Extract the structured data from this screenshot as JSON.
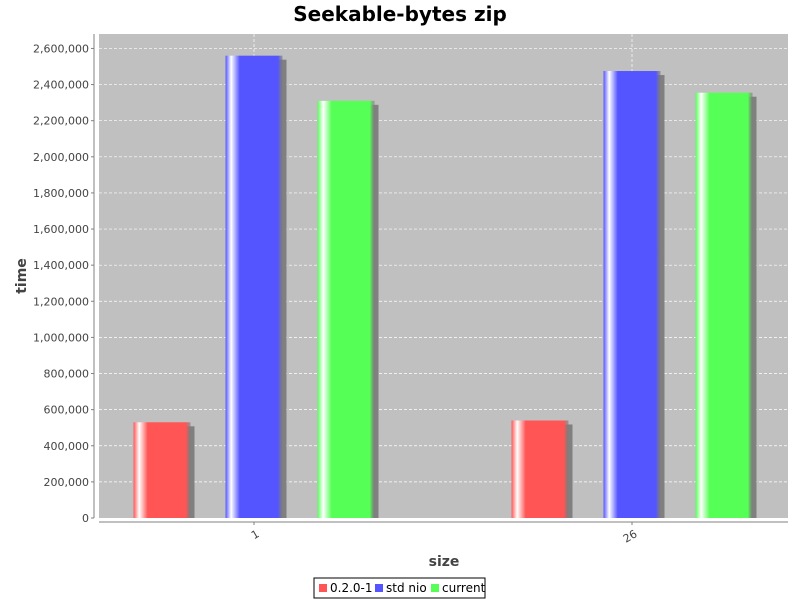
{
  "chart_data": {
    "type": "bar",
    "title": "Seekable-bytes zip",
    "xlabel": "size",
    "ylabel": "time",
    "categories": [
      "1",
      "26"
    ],
    "series": [
      {
        "name": "0.2.0-1",
        "color": "#ff5555",
        "values": [
          530000,
          540000
        ]
      },
      {
        "name": "std nio",
        "color": "#5555ff",
        "values": [
          2560000,
          2475000
        ]
      },
      {
        "name": "current",
        "color": "#55ff55",
        "values": [
          2310000,
          2355000
        ]
      }
    ],
    "ylim": [
      0,
      2680000
    ],
    "yticks": [
      0,
      200000,
      400000,
      600000,
      800000,
      1000000,
      1200000,
      1400000,
      1600000,
      1800000,
      2000000,
      2200000,
      2400000,
      2600000
    ],
    "ytick_labels": [
      "0",
      "200,000",
      "400,000",
      "600,000",
      "800,000",
      "1,000,000",
      "1,200,000",
      "1,400,000",
      "1,600,000",
      "1,800,000",
      "2,000,000",
      "2,200,000",
      "2,400,000",
      "2,600,000"
    ],
    "grid": true,
    "plot_background": "#c0c0c0",
    "legend_position": "bottom"
  }
}
